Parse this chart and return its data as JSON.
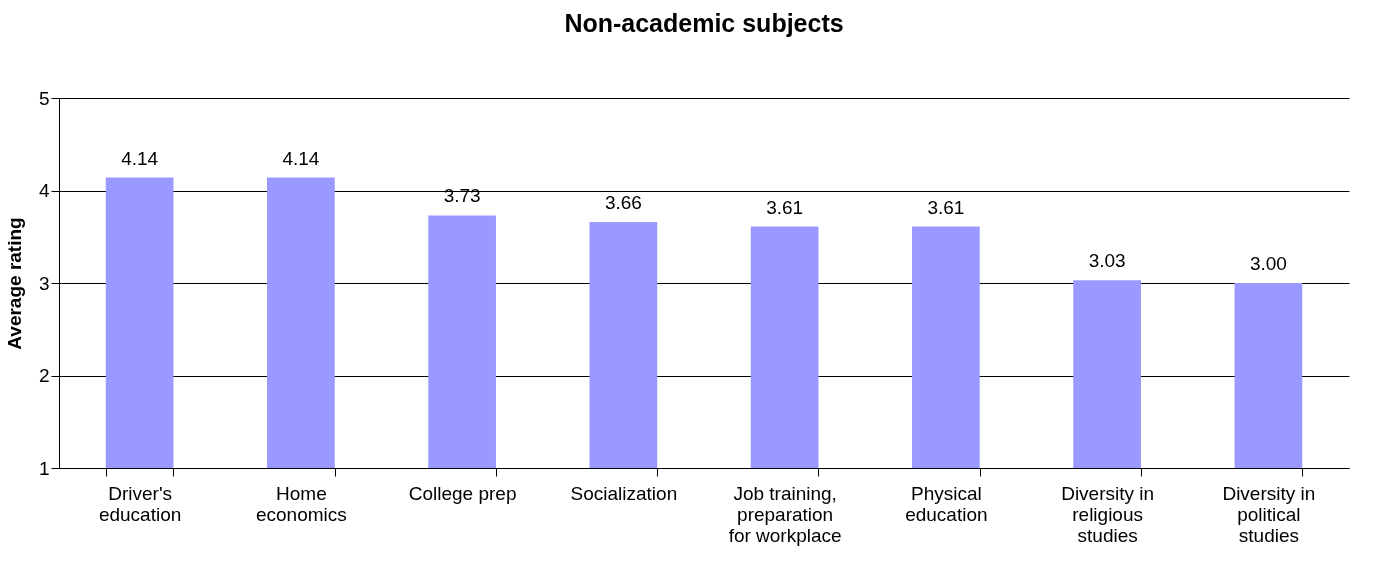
{
  "chart_data": {
    "type": "bar",
    "title": "Non-academic subjects",
    "ylabel": "Average rating",
    "categories": [
      "Driver's education",
      "Home economics",
      "College prep",
      "Socialization",
      "Job training, preparation for workplace",
      "Physical education",
      "Diversity in religious studies",
      "Diversity in political studies"
    ],
    "values": [
      4.14,
      4.14,
      3.73,
      3.66,
      3.61,
      3.61,
      3.03,
      3.0
    ],
    "value_labels": [
      "4.14",
      "4.14",
      "3.73",
      "3.66",
      "3.61",
      "3.61",
      "3.03",
      "3.00"
    ],
    "color": "#9999ff",
    "ylim": [
      1,
      5
    ],
    "yticks": [
      1,
      2,
      3,
      4,
      5
    ],
    "grid": "y"
  }
}
